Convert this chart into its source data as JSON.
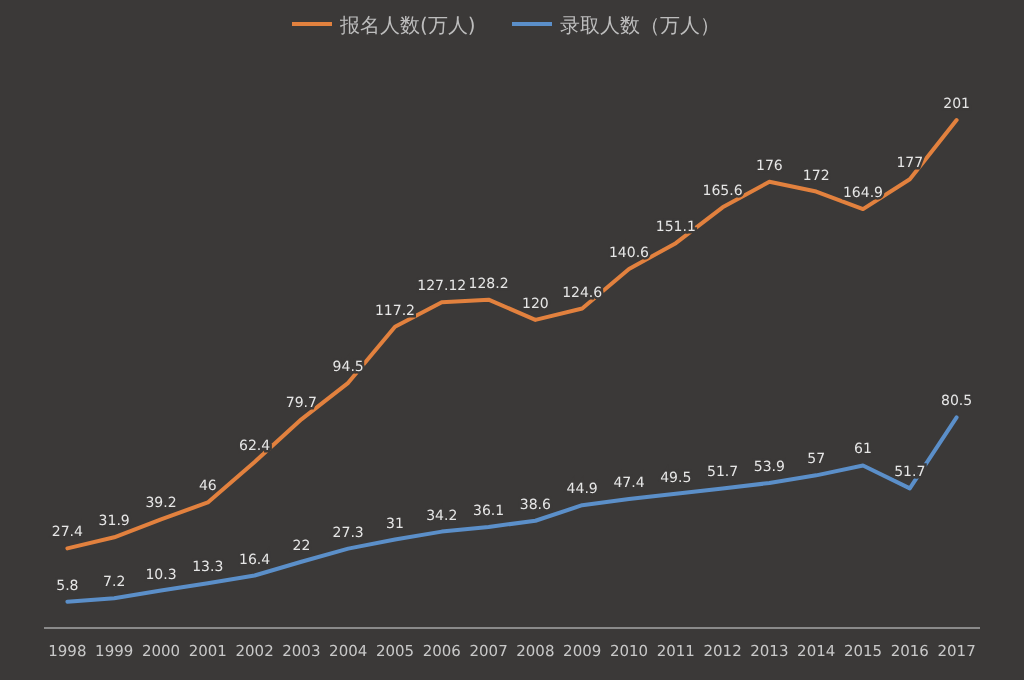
{
  "chart_data": {
    "type": "line",
    "categories": [
      "1998",
      "1999",
      "2000",
      "2001",
      "2002",
      "2003",
      "2004",
      "2005",
      "2006",
      "2007",
      "2008",
      "2009",
      "2010",
      "2011",
      "2012",
      "2013",
      "2014",
      "2015",
      "2016",
      "2017"
    ],
    "series": [
      {
        "name": "报名人数(万人)",
        "color": "#e2813e",
        "values": [
          27.4,
          31.9,
          39.2,
          46,
          62.4,
          79.7,
          94.5,
          117.2,
          127.12,
          128.2,
          120,
          124.6,
          140.6,
          151.1,
          165.6,
          176,
          172,
          164.9,
          177,
          201
        ]
      },
      {
        "name": "录取人数（万人）",
        "color": "#5b8fc9",
        "values": [
          5.8,
          7.2,
          10.3,
          13.3,
          16.4,
          22,
          27.3,
          31,
          34.2,
          36.1,
          38.6,
          44.9,
          47.4,
          49.5,
          51.7,
          53.9,
          57,
          61,
          51.7,
          80.5
        ]
      }
    ],
    "data_labels": true,
    "legend": "top"
  }
}
